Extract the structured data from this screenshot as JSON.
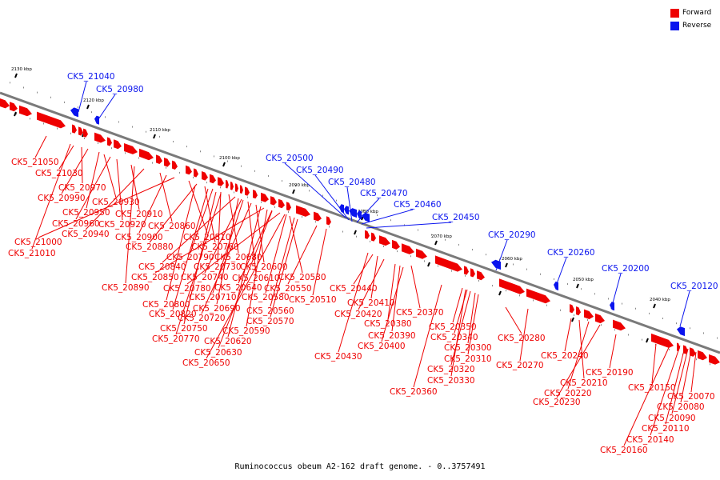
{
  "legend": {
    "forward_label": "Forward",
    "forward_color": "#ee0000",
    "reverse_label": "Reverse",
    "reverse_color": "#0a14ee"
  },
  "caption": "Ruminococcus obeum A2-162 draft genome. - 0..3757491",
  "kbp_ticks": [
    "2130 kbp",
    "2120 kbp",
    "2110 kbp",
    "2100 kbp",
    "2090 kbp",
    "2080 kbp",
    "2070 kbp",
    "2060 kbp",
    "2050 kbp",
    "2040 kbp"
  ],
  "reverse_genes": [
    "CK5_21040",
    "CK5_20980",
    "CK5_20500",
    "CK5_20490",
    "CK5_20480",
    "CK5_20470",
    "CK5_20460",
    "CK5_20450",
    "CK5_20290",
    "CK5_20260",
    "CK5_20200",
    "CK5_20120"
  ],
  "forward_genes": [
    "CK5_21050",
    "CK5_21030",
    "CK5_20970",
    "CK5_20990",
    "CK5_20950",
    "CK5_20930",
    "CK5_20960",
    "CK5_20920",
    "CK5_20910",
    "CK5_20940",
    "CK5_20860",
    "CK5_20900",
    "CK5_20810",
    "CK5_21000",
    "CK5_20880",
    "CK5_20760",
    "CK5_21010",
    "CK5_20790",
    "CK5_20730",
    "CK5_20680",
    "CK5_20840",
    "CK5_20740",
    "CK5_20610",
    "CK5_20600",
    "CK5_20850",
    "CK5_20640",
    "CK5_20530",
    "CK5_20890",
    "CK5_20780",
    "CK5_20580",
    "CK5_20550",
    "CK5_20710",
    "CK5_20510",
    "CK5_20800",
    "CK5_20690",
    "CK5_20560",
    "CK5_20820",
    "CK5_20720",
    "CK5_20570",
    "CK5_20750",
    "CK5_20590",
    "CK5_20770",
    "CK5_20620",
    "CK5_20630",
    "CK5_20650",
    "CK5_20440",
    "CK5_20410",
    "CK5_20420",
    "CK5_20370",
    "CK5_20380",
    "CK5_20390",
    "CK5_20400",
    "CK5_20430",
    "CK5_20350",
    "CK5_20340",
    "CK5_20280",
    "CK5_20300",
    "CK5_20310",
    "CK5_20270",
    "CK5_20320",
    "CK5_20330",
    "CK5_20360",
    "CK5_20240",
    "CK5_20190",
    "CK5_20210",
    "CK5_20220",
    "CK5_20230",
    "CK5_20150",
    "CK5_20070",
    "CK5_20080",
    "CK5_20090",
    "CK5_20110",
    "CK5_20140",
    "CK5_20160"
  ]
}
